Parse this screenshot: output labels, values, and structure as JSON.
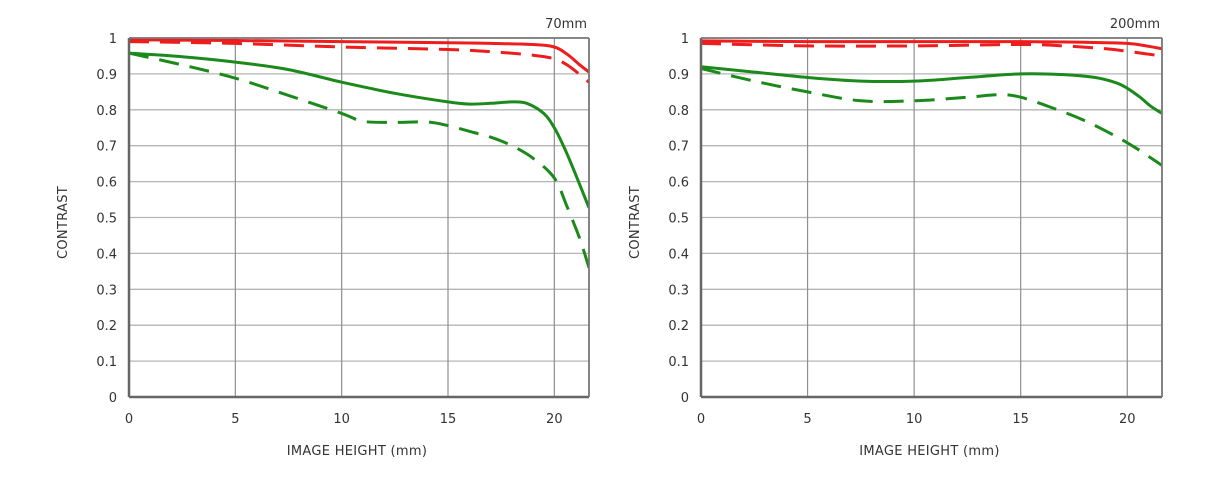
{
  "chart_data": [
    {
      "type": "line",
      "title": "70mm",
      "xlabel": "IMAGE HEIGHT (mm)",
      "ylabel": "CONTRAST",
      "xlim": [
        0,
        21.63
      ],
      "ylim": [
        0,
        1
      ],
      "xticks": [
        "0",
        "5",
        "10",
        "15",
        "20"
      ],
      "yticks": [
        "0",
        "0.1",
        "0.2",
        "0.3",
        "0.4",
        "0.5",
        "0.6",
        "0.7",
        "0.8",
        "0.9",
        "1"
      ],
      "grid": true,
      "series": [
        {
          "name": "red-solid",
          "color": "#ee1c1c",
          "dash": false,
          "x": [
            0,
            5,
            10,
            15,
            17,
            19,
            20,
            20.6,
            21.2,
            21.63
          ],
          "y": [
            0.995,
            0.993,
            0.99,
            0.987,
            0.985,
            0.982,
            0.975,
            0.955,
            0.925,
            0.905
          ]
        },
        {
          "name": "red-dashed",
          "color": "#ee1c1c",
          "dash": true,
          "x": [
            0,
            5,
            10,
            15,
            17,
            19,
            20,
            20.6,
            21.2,
            21.63
          ],
          "y": [
            0.99,
            0.985,
            0.975,
            0.968,
            0.962,
            0.952,
            0.942,
            0.925,
            0.898,
            0.877
          ]
        },
        {
          "name": "green-solid",
          "color": "#1b8a1b",
          "dash": false,
          "x": [
            0,
            2.5,
            5,
            7.5,
            10,
            12.5,
            15,
            16,
            17,
            18,
            18.7,
            19.5,
            20,
            20.5,
            21,
            21.63
          ],
          "y": [
            0.958,
            0.948,
            0.933,
            0.912,
            0.877,
            0.846,
            0.822,
            0.816,
            0.818,
            0.822,
            0.818,
            0.79,
            0.75,
            0.69,
            0.62,
            0.527
          ]
        },
        {
          "name": "green-dashed",
          "color": "#1b8a1b",
          "dash": true,
          "x": [
            0,
            2.5,
            5,
            7.5,
            10,
            11,
            12.5,
            14,
            15,
            16,
            17,
            18,
            19,
            20,
            20.6,
            21.2,
            21.63
          ],
          "y": [
            0.958,
            0.925,
            0.888,
            0.84,
            0.79,
            0.768,
            0.765,
            0.766,
            0.756,
            0.74,
            0.724,
            0.7,
            0.665,
            0.61,
            0.53,
            0.44,
            0.36
          ]
        }
      ]
    },
    {
      "type": "line",
      "title": "200mm",
      "xlabel": "IMAGE HEIGHT (mm)",
      "ylabel": "CONTRAST",
      "xlim": [
        0,
        21.63
      ],
      "ylim": [
        0,
        1
      ],
      "xticks": [
        "0",
        "5",
        "10",
        "15",
        "20"
      ],
      "yticks": [
        "0",
        "0.1",
        "0.2",
        "0.3",
        "0.4",
        "0.5",
        "0.6",
        "0.7",
        "0.8",
        "0.9",
        "1"
      ],
      "grid": true,
      "series": [
        {
          "name": "red-solid",
          "color": "#ee1c1c",
          "dash": false,
          "x": [
            0,
            5,
            10,
            15,
            18,
            20,
            21,
            21.63
          ],
          "y": [
            0.992,
            0.99,
            0.99,
            0.99,
            0.988,
            0.985,
            0.977,
            0.97
          ]
        },
        {
          "name": "red-dashed",
          "color": "#ee1c1c",
          "dash": true,
          "x": [
            0,
            5,
            10,
            15,
            17,
            19,
            20,
            21,
            21.63
          ],
          "y": [
            0.985,
            0.978,
            0.978,
            0.982,
            0.978,
            0.97,
            0.963,
            0.955,
            0.95
          ]
        },
        {
          "name": "green-solid",
          "color": "#1b8a1b",
          "dash": false,
          "x": [
            0,
            2.5,
            5,
            7.5,
            10,
            12.5,
            15,
            17,
            18.5,
            19.5,
            20,
            20.6,
            21.1,
            21.63
          ],
          "y": [
            0.92,
            0.905,
            0.89,
            0.88,
            0.88,
            0.89,
            0.9,
            0.898,
            0.89,
            0.875,
            0.86,
            0.835,
            0.81,
            0.79
          ]
        },
        {
          "name": "green-dashed",
          "color": "#1b8a1b",
          "dash": true,
          "x": [
            0,
            2.5,
            5,
            7.5,
            10,
            12.5,
            14,
            15,
            16.5,
            18,
            19.5,
            20.5,
            21.63
          ],
          "y": [
            0.915,
            0.88,
            0.85,
            0.825,
            0.825,
            0.835,
            0.842,
            0.835,
            0.805,
            0.77,
            0.725,
            0.69,
            0.645
          ]
        }
      ]
    }
  ]
}
